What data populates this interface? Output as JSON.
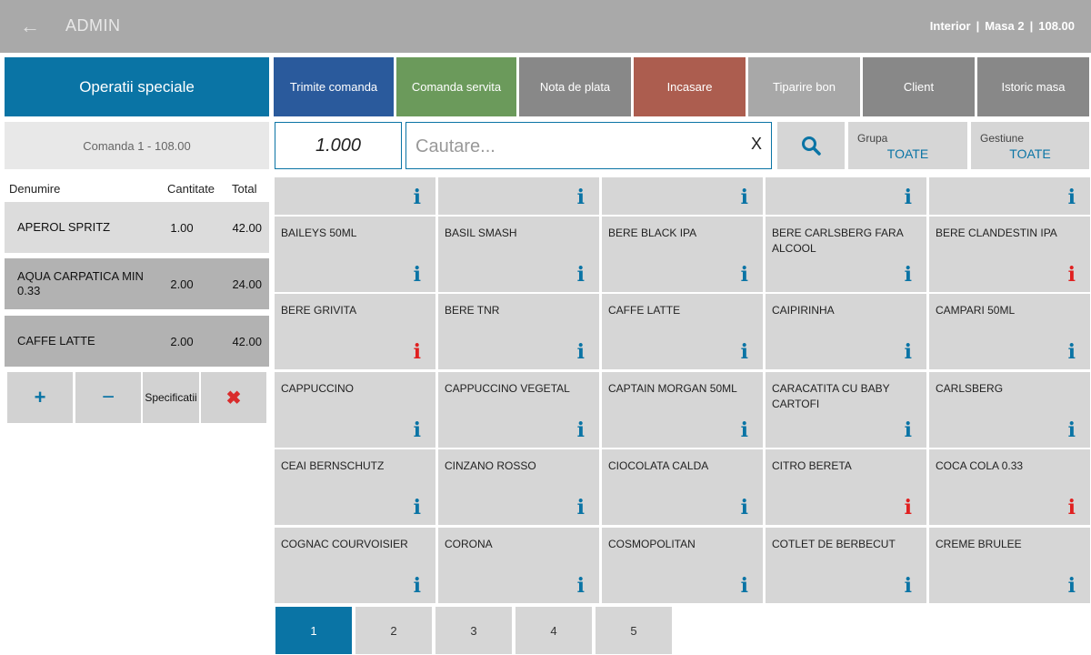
{
  "header": {
    "title": "ADMIN",
    "location": "Interior",
    "table": "Masa 2",
    "total": "108.00"
  },
  "left": {
    "special_ops": "Operatii speciale",
    "order_label": "Comanda 1 - 108.00",
    "columns": {
      "name": "Denumire",
      "qty": "Cantitate",
      "total": "Total"
    },
    "items": [
      {
        "name": "APEROL SPRITZ",
        "qty": "1.00",
        "total": "42.00"
      },
      {
        "name": "AQUA CARPATICA MIN 0.33",
        "qty": "2.00",
        "total": "24.00"
      },
      {
        "name": "CAFFE LATTE",
        "qty": "2.00",
        "total": "42.00"
      }
    ],
    "actions": {
      "plus": "+",
      "minus": "−",
      "spec": "Specificatii",
      "delete": "✖"
    }
  },
  "toolbar": [
    {
      "label": "Trimite comanda",
      "color": "#2a5a9c"
    },
    {
      "label": "Comanda servita",
      "color": "#6b9a5b"
    },
    {
      "label": "Nota de plata",
      "color": "#888888"
    },
    {
      "label": "Incasare",
      "color": "#ac5d4f"
    },
    {
      "label": "Tiparire bon",
      "color": "#a8a8a8"
    },
    {
      "label": "Client",
      "color": "#888888"
    },
    {
      "label": "Istoric masa",
      "color": "#888888"
    }
  ],
  "quantity": "1.000",
  "search": {
    "placeholder": "Cautare...",
    "clear": "X"
  },
  "filters": {
    "group": {
      "label": "Grupa",
      "value": "TOATE"
    },
    "gestiune": {
      "label": "Gestiune",
      "value": "TOATE"
    }
  },
  "products": [
    {
      "name": "",
      "icon": "blue"
    },
    {
      "name": "",
      "icon": "blue"
    },
    {
      "name": "",
      "icon": "blue"
    },
    {
      "name": "",
      "icon": "blue"
    },
    {
      "name": "",
      "icon": "blue"
    },
    {
      "name": "BAILEYS 50ML",
      "icon": "blue"
    },
    {
      "name": "BASIL SMASH",
      "icon": "blue"
    },
    {
      "name": "BERE BLACK IPA",
      "icon": "blue"
    },
    {
      "name": "BERE CARLSBERG FARA ALCOOL",
      "icon": "blue"
    },
    {
      "name": "BERE CLANDESTIN IPA",
      "icon": "red"
    },
    {
      "name": "BERE GRIVITA",
      "icon": "red"
    },
    {
      "name": "BERE TNR",
      "icon": "blue"
    },
    {
      "name": "CAFFE LATTE",
      "icon": "blue"
    },
    {
      "name": "CAIPIRINHA",
      "icon": "blue"
    },
    {
      "name": "CAMPARI 50ML",
      "icon": "blue"
    },
    {
      "name": "CAPPUCCINO",
      "icon": "blue"
    },
    {
      "name": "CAPPUCCINO VEGETAL",
      "icon": "blue"
    },
    {
      "name": "CAPTAIN MORGAN 50ML",
      "icon": "blue"
    },
    {
      "name": "CARACATITA CU BABY CARTOFI",
      "icon": "blue"
    },
    {
      "name": "CARLSBERG",
      "icon": "blue"
    },
    {
      "name": "CEAI BERNSCHUTZ",
      "icon": "blue"
    },
    {
      "name": "CINZANO ROSSO",
      "icon": "blue"
    },
    {
      "name": "CIOCOLATA CALDA",
      "icon": "blue"
    },
    {
      "name": "CITRO BERETA",
      "icon": "red"
    },
    {
      "name": "COCA COLA 0.33",
      "icon": "red"
    },
    {
      "name": "COGNAC COURVOISIER",
      "icon": "blue"
    },
    {
      "name": "CORONA",
      "icon": "blue"
    },
    {
      "name": "COSMOPOLITAN",
      "icon": "blue"
    },
    {
      "name": "COTLET DE BERBECUT",
      "icon": "blue"
    },
    {
      "name": "CREME BRULEE",
      "icon": "blue"
    }
  ],
  "pages": [
    "1",
    "2",
    "3",
    "4",
    "5"
  ],
  "active_page": "1"
}
